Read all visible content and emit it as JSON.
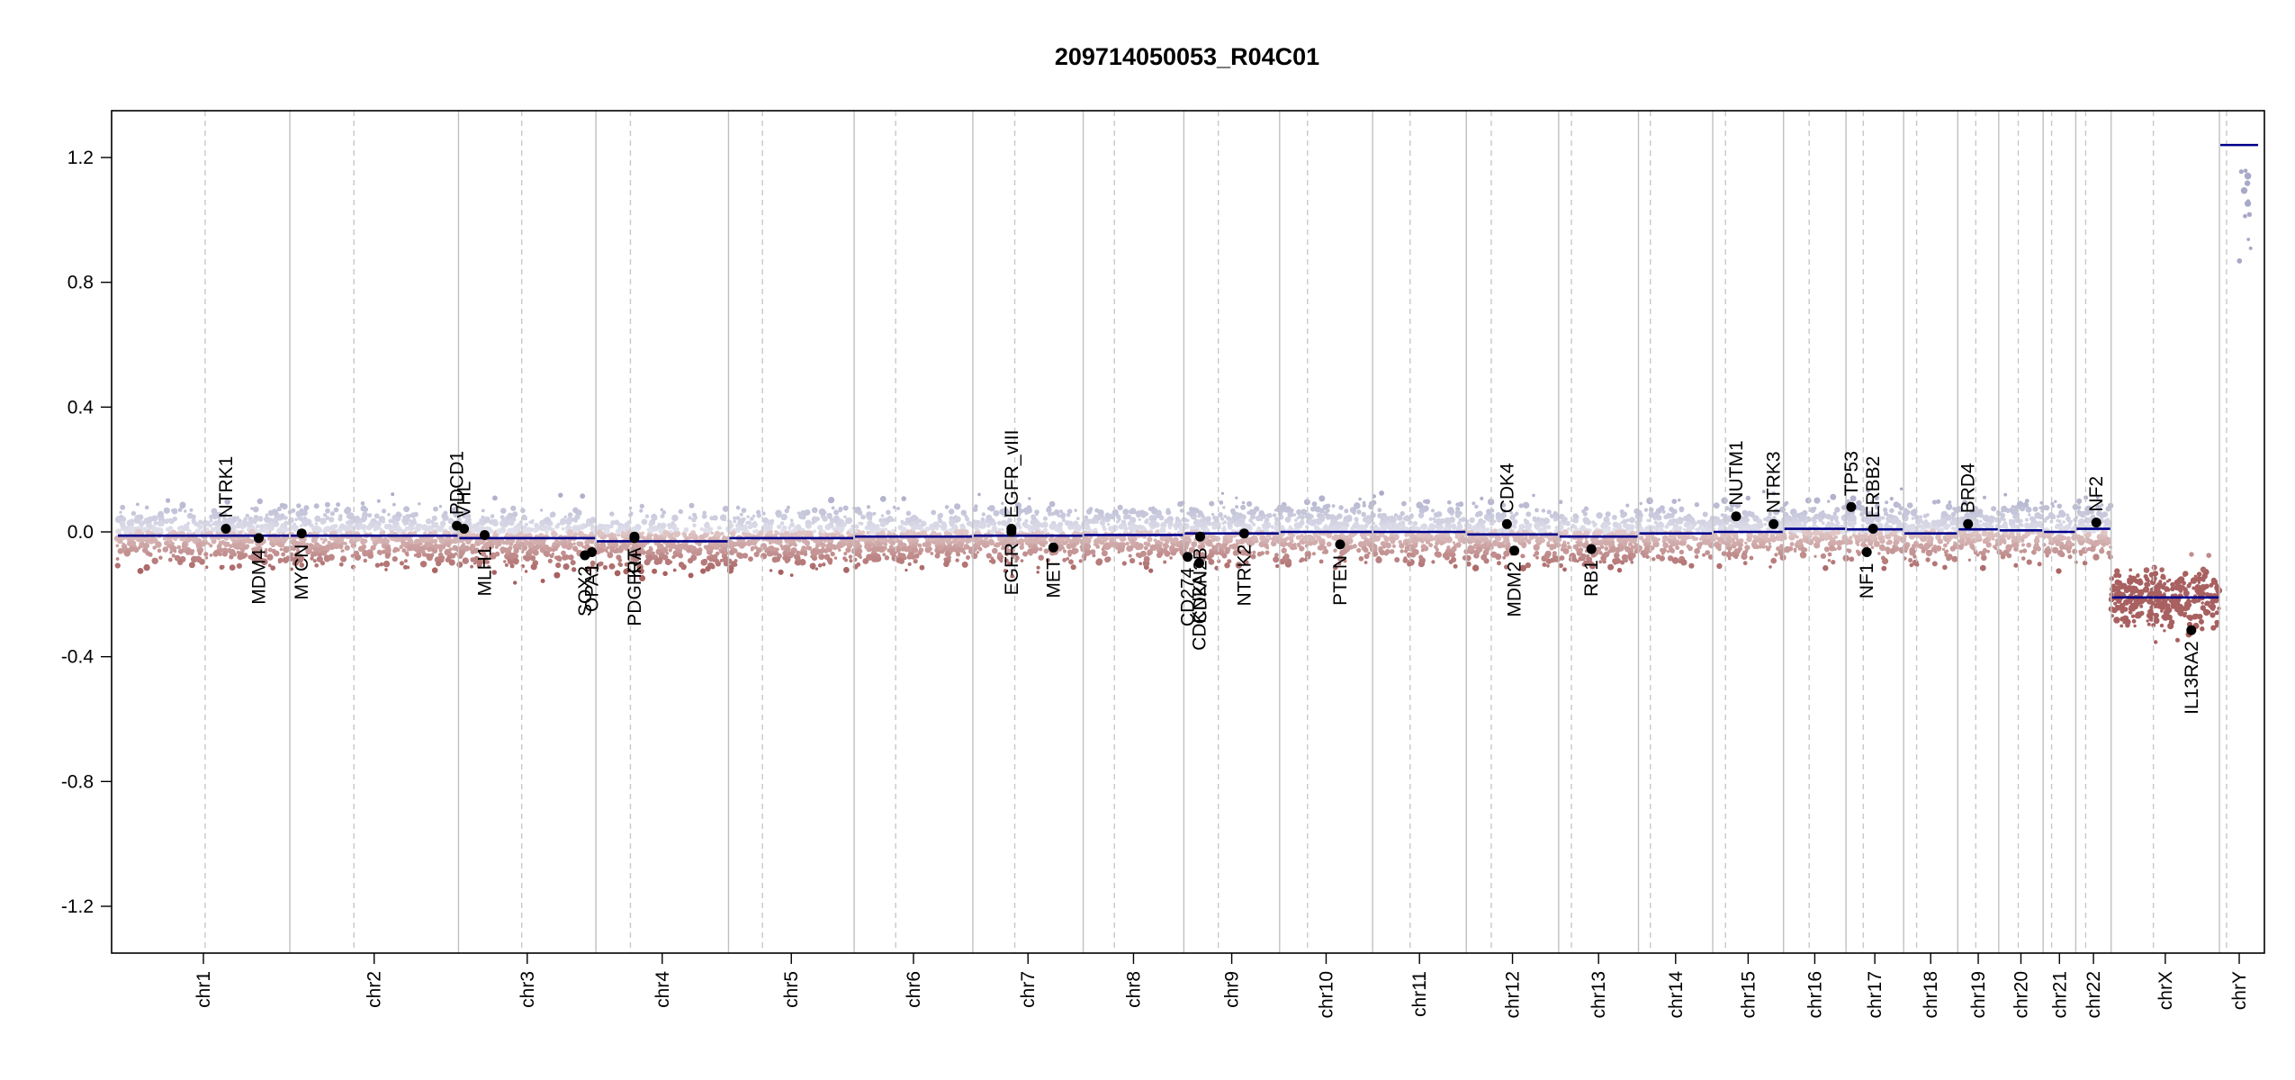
{
  "chart_data": {
    "type": "scatter",
    "title": "209714050053_R04C01",
    "xlabel": "",
    "ylabel": "",
    "ylim": [
      -1.35,
      1.35
    ],
    "y_ticks": [
      -1.2,
      -0.8,
      -0.4,
      0.0,
      0.4,
      0.8,
      1.2
    ],
    "y_tick_labels": [
      "-1.2",
      "-0.8",
      "-0.4",
      "0.0",
      "0.4",
      "0.8",
      "1.2"
    ],
    "grid": false,
    "colors": {
      "gain": "#a8a8c8",
      "loss": "#a86060",
      "segment": "#00008b",
      "boundary": "#c0c0c0",
      "centromere": "#c8c8c8",
      "gene_point": "#000000"
    },
    "chromosomes": [
      {
        "name": "chr1",
        "size": 249,
        "centromere": 0.51,
        "segment": -0.012
      },
      {
        "name": "chr2",
        "size": 243,
        "centromere": 0.38,
        "segment": -0.012
      },
      {
        "name": "chr3",
        "size": 198,
        "centromere": 0.46,
        "segment": -0.02
      },
      {
        "name": "chr4",
        "size": 191,
        "centromere": 0.26,
        "segment": -0.03
      },
      {
        "name": "chr5",
        "size": 181,
        "centromere": 0.27,
        "segment": -0.02
      },
      {
        "name": "chr6",
        "size": 171,
        "centromere": 0.35,
        "segment": -0.015
      },
      {
        "name": "chr7",
        "size": 159,
        "centromere": 0.38,
        "segment": -0.012
      },
      {
        "name": "chr8",
        "size": 145,
        "centromere": 0.31,
        "segment": -0.01
      },
      {
        "name": "chr9",
        "size": 138,
        "centromere": 0.36,
        "segment": -0.005
      },
      {
        "name": "chr10",
        "size": 134,
        "centromere": 0.3,
        "segment": 0.0
      },
      {
        "name": "chr11",
        "size": 135,
        "centromere": 0.4,
        "segment": 0.0
      },
      {
        "name": "chr12",
        "size": 133,
        "centromere": 0.27,
        "segment": -0.008
      },
      {
        "name": "chr13",
        "size": 115,
        "centromere": 0.16,
        "segment": -0.015
      },
      {
        "name": "chr14",
        "size": 107,
        "centromere": 0.16,
        "segment": -0.005
      },
      {
        "name": "chr15",
        "size": 102,
        "centromere": 0.18,
        "segment": 0.0
      },
      {
        "name": "chr16",
        "size": 90,
        "centromere": 0.41,
        "segment": 0.01
      },
      {
        "name": "chr17",
        "size": 83,
        "centromere": 0.3,
        "segment": 0.008
      },
      {
        "name": "chr18",
        "size": 78,
        "centromere": 0.24,
        "segment": -0.005
      },
      {
        "name": "chr19",
        "size": 59,
        "centromere": 0.44,
        "segment": 0.008
      },
      {
        "name": "chr20",
        "size": 64,
        "centromere": 0.44,
        "segment": 0.005
      },
      {
        "name": "chr21",
        "size": 47,
        "centromere": 0.26,
        "segment": 0.0
      },
      {
        "name": "chr22",
        "size": 51,
        "centromere": 0.28,
        "segment": 0.01
      },
      {
        "name": "chrX",
        "size": 156,
        "centromere": 0.39,
        "segment": -0.21
      },
      {
        "name": "chrY",
        "size": 57,
        "centromere": 0.18,
        "segment": 1.24
      }
    ],
    "genes": [
      {
        "name": "NTRK1",
        "chr": "chr1",
        "pos": 0.63,
        "value": 0.01,
        "label_side": "above"
      },
      {
        "name": "MDM4",
        "chr": "chr1",
        "pos": 0.82,
        "value": -0.02,
        "label_side": "below"
      },
      {
        "name": "MYCN",
        "chr": "chr2",
        "pos": 0.07,
        "value": -0.005,
        "label_side": "below"
      },
      {
        "name": "PDCD1",
        "chr": "chr2",
        "pos": 0.99,
        "value": 0.02,
        "label_side": "above"
      },
      {
        "name": "VHL",
        "chr": "chr3",
        "pos": 0.04,
        "value": 0.01,
        "label_side": "above"
      },
      {
        "name": "MLH1",
        "chr": "chr3",
        "pos": 0.19,
        "value": -0.01,
        "label_side": "below"
      },
      {
        "name": "SOX2",
        "chr": "chr3",
        "pos": 0.92,
        "value": -0.075,
        "label_side": "below"
      },
      {
        "name": "OPA1",
        "chr": "chr3",
        "pos": 0.97,
        "value": -0.065,
        "label_side": "below"
      },
      {
        "name": "PDGFRA",
        "chr": "chr4",
        "pos": 0.29,
        "value": -0.015,
        "label_side": "below"
      },
      {
        "name": "KIT",
        "chr": "chr4",
        "pos": 0.29,
        "value": -0.02,
        "label_side": "below"
      },
      {
        "name": "EGFR",
        "chr": "chr7",
        "pos": 0.35,
        "value": 0.0,
        "label_side": "below"
      },
      {
        "name": "EGFR_vIII",
        "chr": "chr7",
        "pos": 0.35,
        "value": 0.01,
        "label_side": "above"
      },
      {
        "name": "MET",
        "chr": "chr7",
        "pos": 0.73,
        "value": -0.05,
        "label_side": "below"
      },
      {
        "name": "CD274",
        "chr": "chr9",
        "pos": 0.04,
        "value": -0.08,
        "label_side": "below"
      },
      {
        "name": "CDKN2A",
        "chr": "chr9",
        "pos": 0.16,
        "value": -0.1,
        "label_side": "below"
      },
      {
        "name": "CDKN2B",
        "chr": "chr9",
        "pos": 0.17,
        "value": -0.015,
        "label_side": "below"
      },
      {
        "name": "NTRK2",
        "chr": "chr9",
        "pos": 0.63,
        "value": -0.005,
        "label_side": "below"
      },
      {
        "name": "PTEN",
        "chr": "chr10",
        "pos": 0.65,
        "value": -0.04,
        "label_side": "below"
      },
      {
        "name": "CDK4",
        "chr": "chr12",
        "pos": 0.44,
        "value": 0.025,
        "label_side": "above"
      },
      {
        "name": "MDM2",
        "chr": "chr12",
        "pos": 0.52,
        "value": -0.06,
        "label_side": "below"
      },
      {
        "name": "RB1",
        "chr": "chr13",
        "pos": 0.41,
        "value": -0.055,
        "label_side": "below"
      },
      {
        "name": "NUTM1",
        "chr": "chr15",
        "pos": 0.33,
        "value": 0.05,
        "label_side": "above"
      },
      {
        "name": "NTRK3",
        "chr": "chr15",
        "pos": 0.86,
        "value": 0.025,
        "label_side": "above"
      },
      {
        "name": "TP53",
        "chr": "chr17",
        "pos": 0.09,
        "value": 0.08,
        "label_side": "above"
      },
      {
        "name": "ERBB2",
        "chr": "chr17",
        "pos": 0.47,
        "value": 0.01,
        "label_side": "above"
      },
      {
        "name": "NF1",
        "chr": "chr17",
        "pos": 0.36,
        "value": -0.065,
        "label_side": "below"
      },
      {
        "name": "BRD4",
        "chr": "chr19",
        "pos": 0.25,
        "value": 0.025,
        "label_side": "above"
      },
      {
        "name": "NF2",
        "chr": "chr22",
        "pos": 0.58,
        "value": 0.03,
        "label_side": "above"
      },
      {
        "name": "IL13RA2",
        "chr": "chrX",
        "pos": 0.74,
        "value": -0.315,
        "label_side": "below"
      }
    ]
  }
}
